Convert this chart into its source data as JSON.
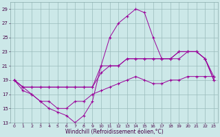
{
  "xlabel": "Windchill (Refroidissement éolien,°C)",
  "x": [
    0,
    1,
    2,
    3,
    4,
    5,
    6,
    7,
    8,
    9,
    10,
    11,
    12,
    13,
    14,
    15,
    16,
    17,
    18,
    19,
    20,
    21,
    22,
    23
  ],
  "line1": [
    19,
    18,
    18,
    18,
    18,
    18,
    18,
    18,
    18,
    18,
    20,
    21,
    21,
    22,
    22,
    22,
    22,
    22,
    22,
    23,
    23,
    23,
    22,
    19
  ],
  "line2": [
    19,
    18,
    17,
    16,
    15,
    14.5,
    14,
    13,
    14,
    16,
    21,
    25,
    27,
    28,
    29,
    28.5,
    25,
    22,
    22,
    23,
    23,
    23,
    22,
    19.5
  ],
  "line3": [
    19,
    18,
    18,
    18,
    18,
    18,
    18,
    18,
    18,
    18,
    21,
    21,
    21,
    22,
    22,
    22,
    22,
    22,
    22,
    22,
    23,
    23,
    22,
    19
  ],
  "line4": [
    19,
    17.5,
    17,
    16,
    16,
    15,
    15,
    16,
    16,
    17,
    17.5,
    18,
    18.5,
    19,
    19.5,
    19,
    18.5,
    18.5,
    19,
    19,
    19.5,
    19.5,
    19.5,
    19.5
  ],
  "ylim": [
    13,
    30
  ],
  "xlim": [
    -0.5,
    23.5
  ],
  "yticks": [
    13,
    15,
    17,
    19,
    21,
    23,
    25,
    27,
    29
  ],
  "line_color": "#990099",
  "bg_color": "#cce8e8",
  "grid_color": "#99bbbb"
}
